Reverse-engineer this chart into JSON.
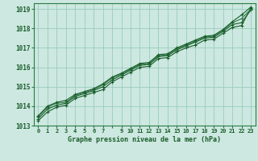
{
  "title": "Graphe pression niveau de la mer (hPa)",
  "background_color": "#cce8e0",
  "grid_color": "#99ccbb",
  "line_color_dark": "#1a5c2a",
  "line_color_light": "#2d7a45",
  "xlim": [
    -0.5,
    23.5
  ],
  "ylim": [
    1013,
    1019.3
  ],
  "yticks": [
    1013,
    1014,
    1015,
    1016,
    1017,
    1018,
    1019
  ],
  "hours": [
    0,
    1,
    2,
    3,
    4,
    5,
    6,
    7,
    8,
    9,
    10,
    11,
    12,
    13,
    14,
    15,
    16,
    17,
    18,
    19,
    20,
    21,
    22,
    23
  ],
  "series": [
    [
      1013.25,
      1013.7,
      1013.95,
      1014.05,
      1014.4,
      1014.55,
      1014.7,
      1014.85,
      1015.25,
      1015.5,
      1015.75,
      1016.0,
      1016.05,
      1016.45,
      1016.5,
      1016.8,
      1017.0,
      1017.15,
      1017.4,
      1017.45,
      1017.75,
      1018.05,
      1018.15,
      1019.05
    ],
    [
      1013.35,
      1013.85,
      1014.05,
      1014.15,
      1014.5,
      1014.65,
      1014.8,
      1015.0,
      1015.35,
      1015.6,
      1015.85,
      1016.1,
      1016.15,
      1016.55,
      1016.6,
      1016.9,
      1017.1,
      1017.3,
      1017.5,
      1017.55,
      1017.85,
      1018.2,
      1018.3,
      1018.95
    ],
    [
      1013.45,
      1013.95,
      1014.15,
      1014.2,
      1014.55,
      1014.7,
      1014.85,
      1015.1,
      1015.45,
      1015.65,
      1015.9,
      1016.15,
      1016.2,
      1016.6,
      1016.65,
      1016.95,
      1017.15,
      1017.35,
      1017.55,
      1017.6,
      1017.9,
      1018.3,
      1018.5,
      1019.0
    ],
    [
      1013.5,
      1014.0,
      1014.2,
      1014.3,
      1014.6,
      1014.75,
      1014.9,
      1015.15,
      1015.5,
      1015.7,
      1015.95,
      1016.2,
      1016.25,
      1016.65,
      1016.7,
      1017.0,
      1017.2,
      1017.4,
      1017.6,
      1017.65,
      1017.95,
      1018.35,
      1018.7,
      1019.1
    ]
  ],
  "xtick_labels": [
    "0",
    "1",
    "2",
    "3",
    "4",
    "5",
    "6",
    "7",
    "",
    "9",
    "10",
    "11",
    "12",
    "13",
    "14",
    "15",
    "16",
    "17",
    "18",
    "19",
    "20",
    "21",
    "22",
    "23"
  ]
}
